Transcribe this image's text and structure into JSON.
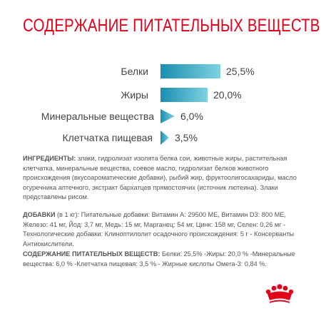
{
  "title": "СОДЕРЖАНИЕ ПИТАТЕЛЬНЫХ ВЕЩЕСТВ",
  "colors": {
    "title": "#e2001a",
    "bar_dark": "#1a8fb0",
    "bar_light": "#7fd1e0",
    "logo": "#e2001a"
  },
  "nutrients": [
    {
      "label": "Белки",
      "value": "25,5%",
      "percent": 25.5
    },
    {
      "label": "Жиры",
      "value": "20,0%",
      "percent": 20.0
    },
    {
      "label": "Минеральные вещества",
      "value": "6,0%",
      "percent": 6.0
    },
    {
      "label": "Клетчатка пищевая",
      "value": "3,5%",
      "percent": 3.5
    }
  ],
  "ingredients": {
    "heading": "ИНГРЕДИЕНТЫ:",
    "text": " злаки, гидролизат изолята белка сои, животные жиры, растительная клетчатка, минеральные вещества, соевое масло, гидролизат белков животного происхождения (вкусоароматические добавки), рыбий жир, фруктоолигосахариды, масло огуречника аптечного, экстракт бархатцев прямостоячих (источник лютеина). Злаки представлены рисом."
  },
  "additives": {
    "heading": "ДОБАВКИ",
    "text": " (в 1 кг): Питательные добавки: Витамин A: 29500 МЕ, Витамин D3: 800 МЕ, Железо: 41 мг, Йод: 3,7 мг, Медь: 15 мг, Марганец: 54 мг, Цинк: 158 мг, Селен: 0,26 мг - Технологические добавки: Клиноптилолит осадочного происхождения: 5 г - Консерванты Антиокислители."
  },
  "summary": {
    "heading": "СОДЕРЖАНИЕ ПИТАТЕЛЬНЫХ ВЕЩЕСТВ:",
    "text": " Белки: 25,5% -Жиры: 20,0 % -Минеральные вещества: 6,0 % -Клетчатка пищевая: 3,5 % - Жирные кислоты Омега-3: 0,84 %."
  },
  "logo_icon": "crown-icon"
}
